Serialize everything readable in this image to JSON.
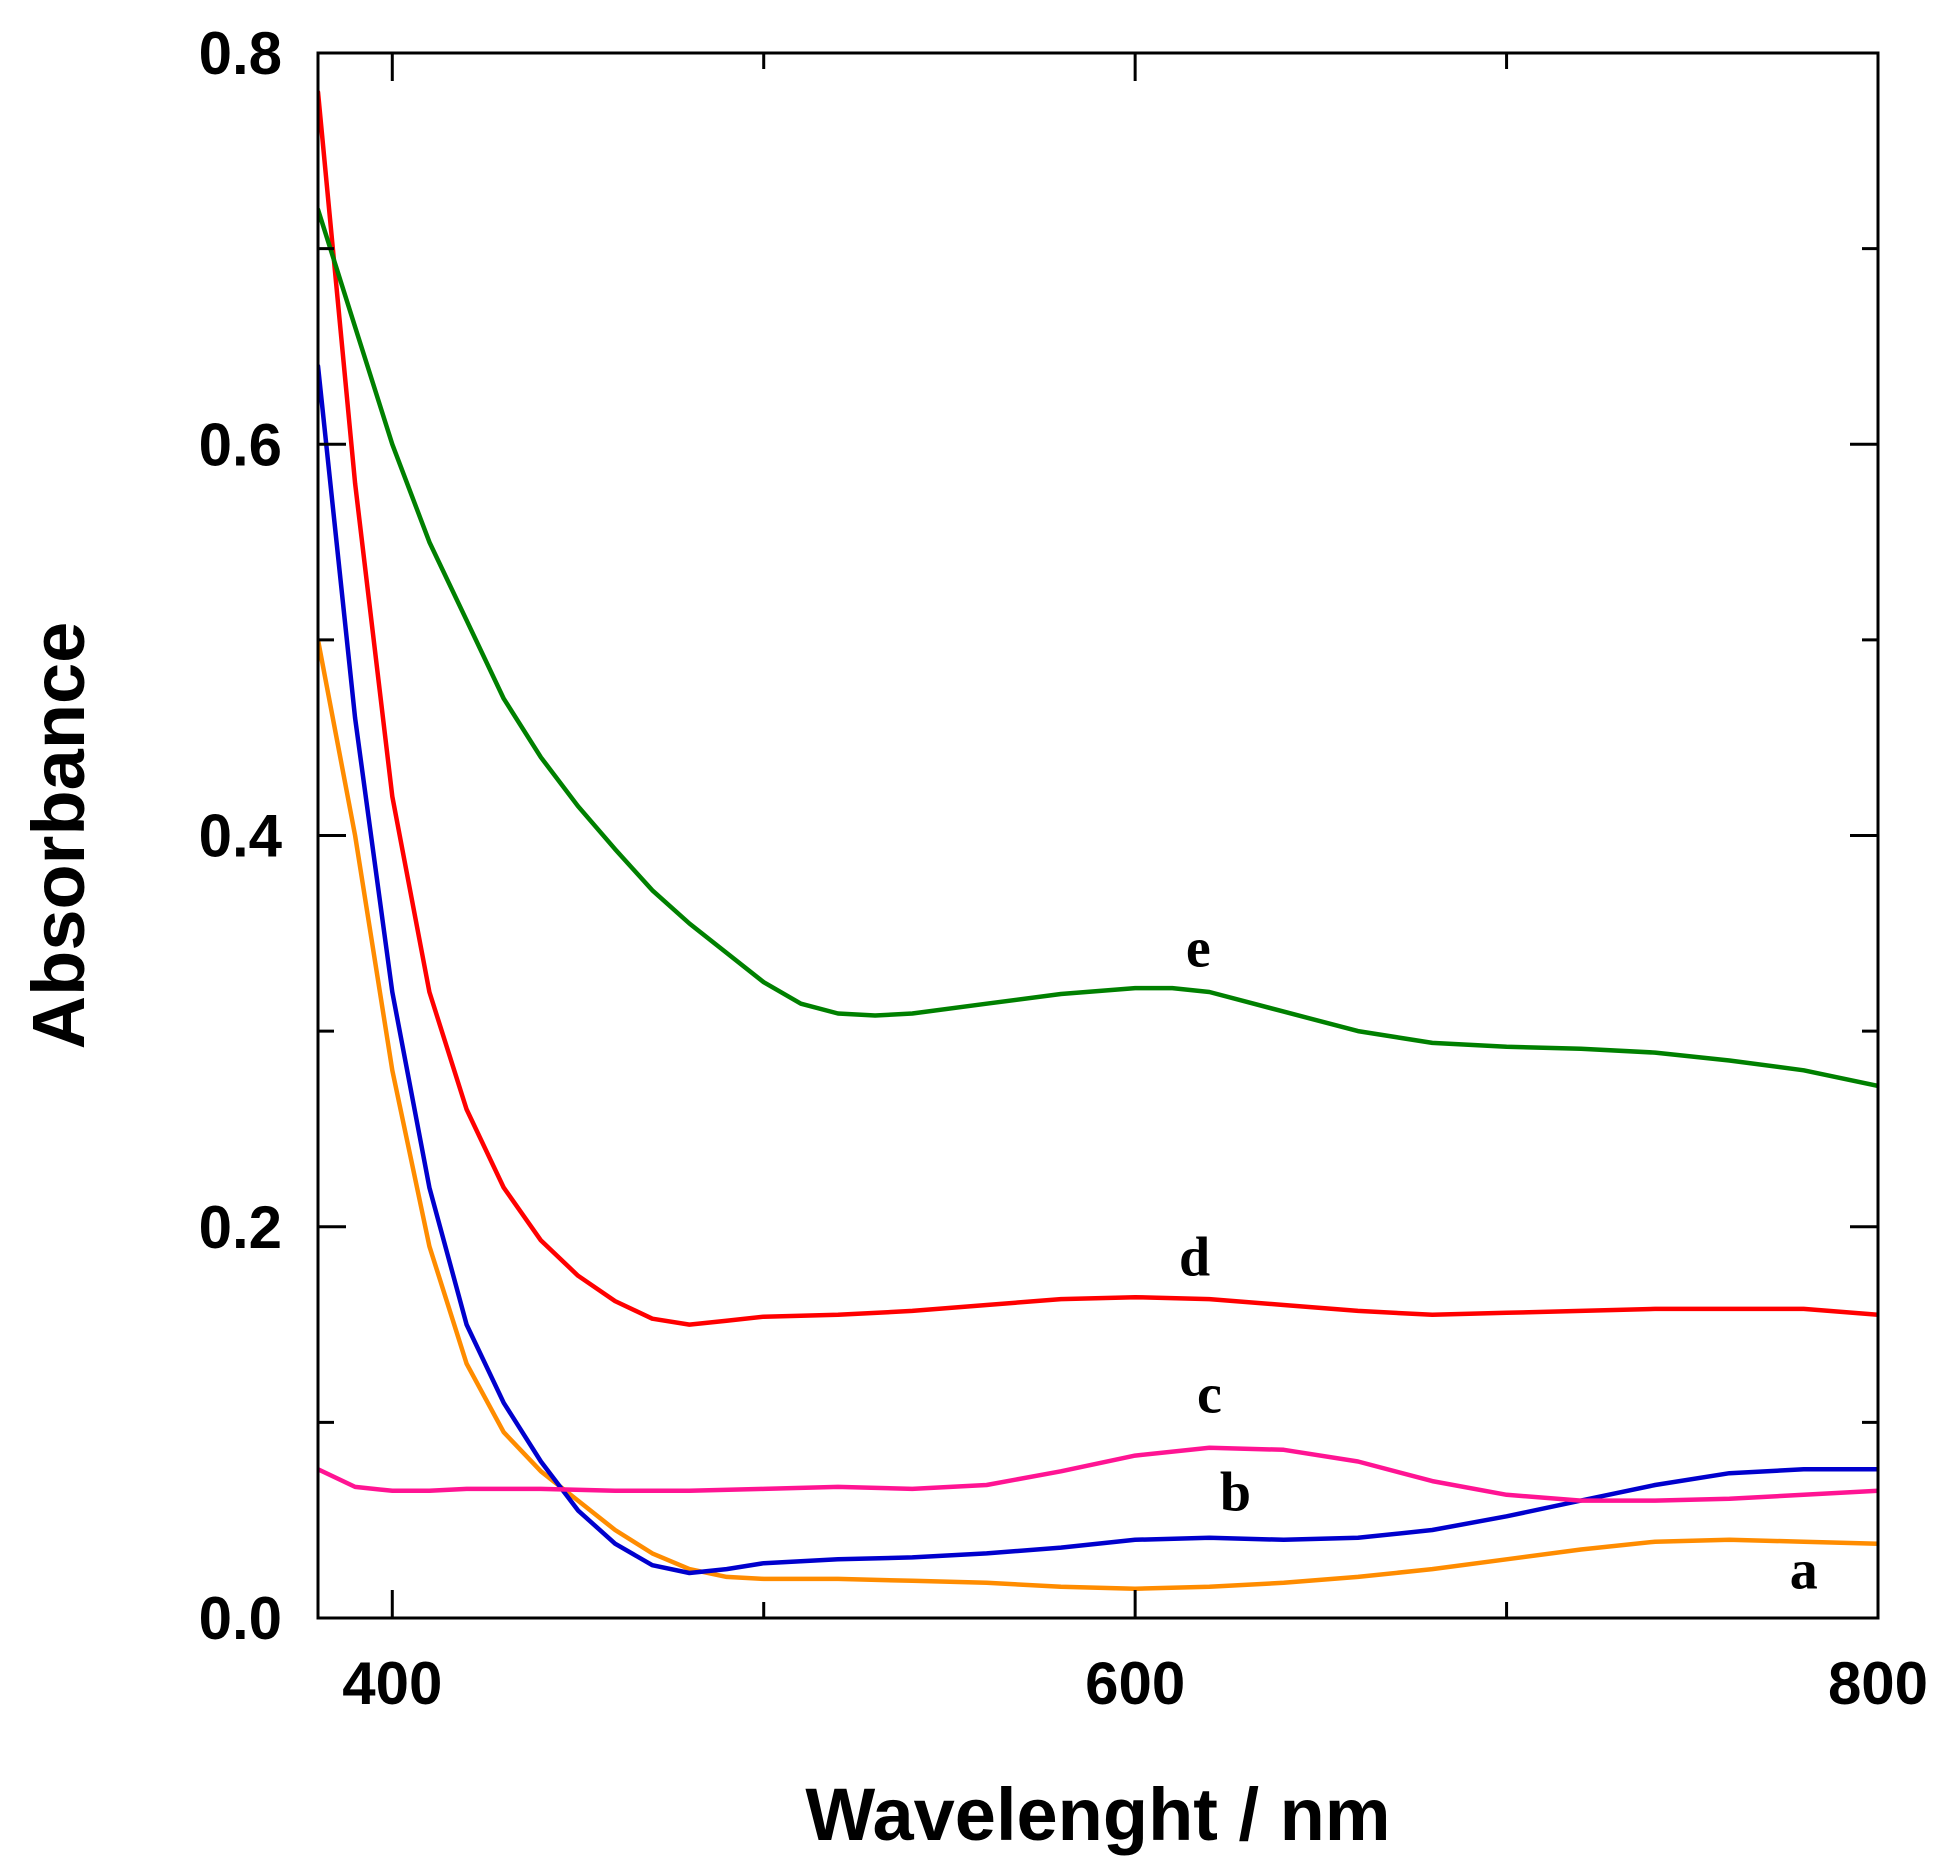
{
  "chart_data": {
    "type": "line",
    "title": "",
    "xlabel": "Wavelenght / nm",
    "ylabel": "Absorbance",
    "xlim": [
      380,
      800
    ],
    "ylim": [
      0.0,
      0.8
    ],
    "x_major_ticks": [
      400,
      600,
      800
    ],
    "x_tick_labels": [
      "400",
      "600",
      "800"
    ],
    "x_minor_ticks": [
      500,
      700
    ],
    "y_major_ticks": [
      0.0,
      0.2,
      0.4,
      0.6,
      0.8
    ],
    "y_tick_labels": [
      "0.0",
      "0.2",
      "0.4",
      "0.6",
      "0.8"
    ],
    "y_minor_ticks": [
      0.1,
      0.3,
      0.5,
      0.7
    ],
    "grid": false,
    "legend": "none",
    "series": [
      {
        "name": "a",
        "label": "a",
        "color": "#ff8c00",
        "label_at": [
          780,
          0.015
        ],
        "points": [
          [
            380,
            0.5
          ],
          [
            390,
            0.4
          ],
          [
            400,
            0.28
          ],
          [
            410,
            0.19
          ],
          [
            420,
            0.13
          ],
          [
            430,
            0.095
          ],
          [
            440,
            0.075
          ],
          [
            450,
            0.06
          ],
          [
            460,
            0.045
          ],
          [
            470,
            0.033
          ],
          [
            480,
            0.025
          ],
          [
            490,
            0.021
          ],
          [
            500,
            0.02
          ],
          [
            520,
            0.02
          ],
          [
            540,
            0.019
          ],
          [
            560,
            0.018
          ],
          [
            580,
            0.016
          ],
          [
            600,
            0.015
          ],
          [
            620,
            0.016
          ],
          [
            640,
            0.018
          ],
          [
            660,
            0.021
          ],
          [
            680,
            0.025
          ],
          [
            700,
            0.03
          ],
          [
            720,
            0.035
          ],
          [
            740,
            0.039
          ],
          [
            760,
            0.04
          ],
          [
            780,
            0.039
          ],
          [
            800,
            0.038
          ]
        ]
      },
      {
        "name": "b",
        "label": "b",
        "color": "#0000cd",
        "label_at": [
          627,
          0.055
        ],
        "points": [
          [
            380,
            0.64
          ],
          [
            390,
            0.46
          ],
          [
            400,
            0.32
          ],
          [
            410,
            0.22
          ],
          [
            420,
            0.15
          ],
          [
            430,
            0.11
          ],
          [
            440,
            0.08
          ],
          [
            450,
            0.055
          ],
          [
            460,
            0.038
          ],
          [
            470,
            0.027
          ],
          [
            480,
            0.023
          ],
          [
            490,
            0.025
          ],
          [
            500,
            0.028
          ],
          [
            520,
            0.03
          ],
          [
            540,
            0.031
          ],
          [
            560,
            0.033
          ],
          [
            580,
            0.036
          ],
          [
            600,
            0.04
          ],
          [
            620,
            0.041
          ],
          [
            640,
            0.04
          ],
          [
            660,
            0.041
          ],
          [
            680,
            0.045
          ],
          [
            700,
            0.052
          ],
          [
            720,
            0.06
          ],
          [
            740,
            0.068
          ],
          [
            760,
            0.074
          ],
          [
            780,
            0.076
          ],
          [
            800,
            0.076
          ]
        ]
      },
      {
        "name": "c",
        "label": "c",
        "color": "#ff1493",
        "label_at": [
          620,
          0.105
        ],
        "points": [
          [
            380,
            0.076
          ],
          [
            390,
            0.067
          ],
          [
            400,
            0.065
          ],
          [
            410,
            0.065
          ],
          [
            420,
            0.066
          ],
          [
            440,
            0.066
          ],
          [
            460,
            0.065
          ],
          [
            480,
            0.065
          ],
          [
            500,
            0.066
          ],
          [
            520,
            0.067
          ],
          [
            540,
            0.066
          ],
          [
            560,
            0.068
          ],
          [
            580,
            0.075
          ],
          [
            600,
            0.083
          ],
          [
            620,
            0.087
          ],
          [
            640,
            0.086
          ],
          [
            660,
            0.08
          ],
          [
            680,
            0.07
          ],
          [
            700,
            0.063
          ],
          [
            720,
            0.06
          ],
          [
            740,
            0.06
          ],
          [
            760,
            0.061
          ],
          [
            780,
            0.063
          ],
          [
            800,
            0.065
          ]
        ]
      },
      {
        "name": "d",
        "label": "d",
        "color": "#ff0000",
        "label_at": [
          616,
          0.175
        ],
        "points": [
          [
            380,
            0.78
          ],
          [
            390,
            0.58
          ],
          [
            400,
            0.42
          ],
          [
            410,
            0.32
          ],
          [
            420,
            0.26
          ],
          [
            430,
            0.22
          ],
          [
            440,
            0.193
          ],
          [
            450,
            0.175
          ],
          [
            460,
            0.162
          ],
          [
            470,
            0.153
          ],
          [
            480,
            0.15
          ],
          [
            490,
            0.152
          ],
          [
            500,
            0.154
          ],
          [
            520,
            0.155
          ],
          [
            540,
            0.157
          ],
          [
            560,
            0.16
          ],
          [
            580,
            0.163
          ],
          [
            600,
            0.164
          ],
          [
            620,
            0.163
          ],
          [
            640,
            0.16
          ],
          [
            660,
            0.157
          ],
          [
            680,
            0.155
          ],
          [
            700,
            0.156
          ],
          [
            720,
            0.157
          ],
          [
            740,
            0.158
          ],
          [
            760,
            0.158
          ],
          [
            780,
            0.158
          ],
          [
            800,
            0.155
          ]
        ]
      },
      {
        "name": "e",
        "label": "e",
        "color": "#008000",
        "label_at": [
          617,
          0.333
        ],
        "points": [
          [
            380,
            0.72
          ],
          [
            390,
            0.66
          ],
          [
            400,
            0.6
          ],
          [
            410,
            0.55
          ],
          [
            420,
            0.51
          ],
          [
            430,
            0.47
          ],
          [
            440,
            0.44
          ],
          [
            450,
            0.415
          ],
          [
            460,
            0.393
          ],
          [
            470,
            0.372
          ],
          [
            480,
            0.355
          ],
          [
            490,
            0.34
          ],
          [
            500,
            0.325
          ],
          [
            510,
            0.314
          ],
          [
            520,
            0.309
          ],
          [
            530,
            0.308
          ],
          [
            540,
            0.309
          ],
          [
            560,
            0.314
          ],
          [
            580,
            0.319
          ],
          [
            600,
            0.322
          ],
          [
            610,
            0.322
          ],
          [
            620,
            0.32
          ],
          [
            640,
            0.31
          ],
          [
            660,
            0.3
          ],
          [
            680,
            0.294
          ],
          [
            700,
            0.292
          ],
          [
            720,
            0.291
          ],
          [
            740,
            0.289
          ],
          [
            760,
            0.285
          ],
          [
            780,
            0.28
          ],
          [
            800,
            0.272
          ]
        ]
      }
    ]
  }
}
